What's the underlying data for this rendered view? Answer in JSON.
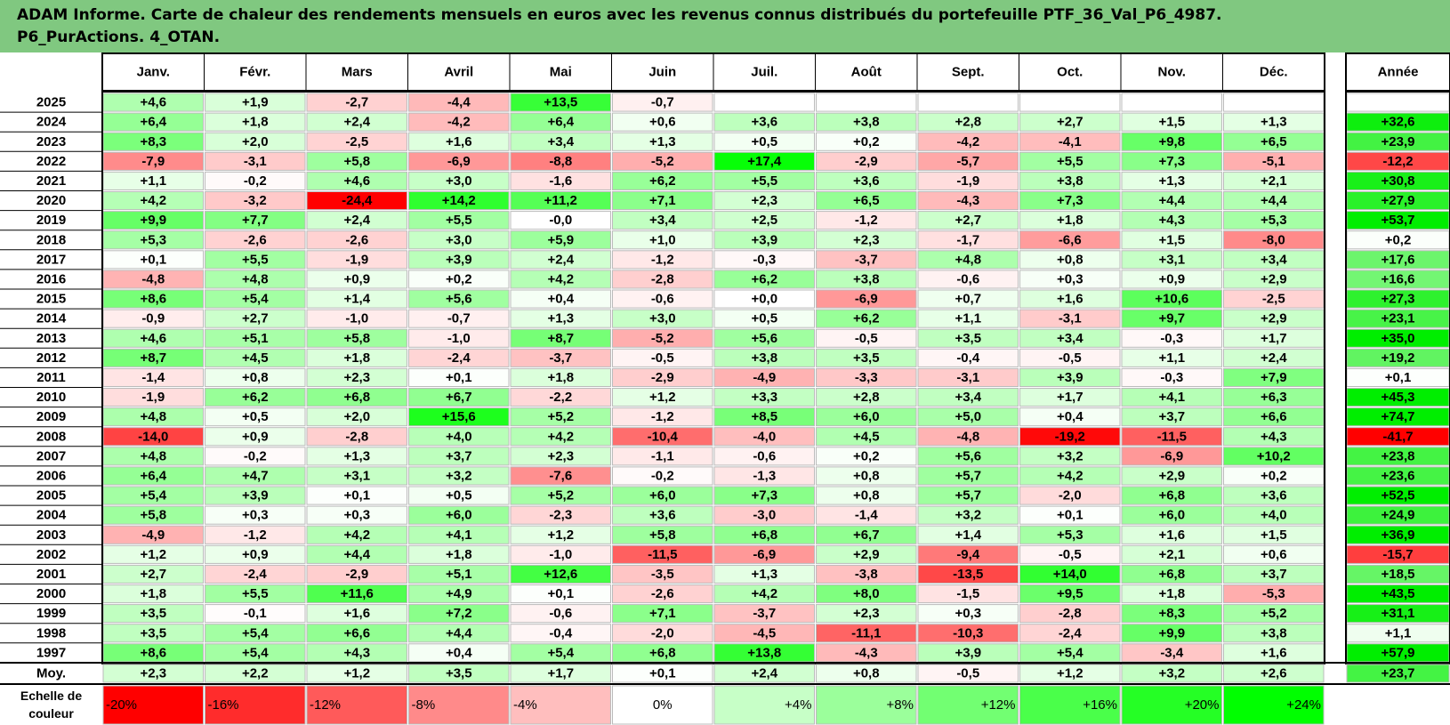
{
  "title_lines": [
    "ADAM Informe. Carte de chaleur des rendements mensuels en euros avec les revenus connus distribués du portefeuille PTF_36_Val_P6_4987.",
    "P6_PurActions. 4_OTAN."
  ],
  "chart_data": {
    "type": "heatmap",
    "columns": [
      "Janv.",
      "Févr.",
      "Mars",
      "Avril",
      "Mai",
      "Juin",
      "Juil.",
      "Août",
      "Sept.",
      "Oct.",
      "Nov.",
      "Déc."
    ],
    "year_header": "Année",
    "rows": [
      {
        "label": "2025",
        "values": [
          "+4,6",
          "+1,9",
          "-2,7",
          "-4,4",
          "+13,5",
          "-0,7",
          "",
          "",
          "",
          "",
          "",
          ""
        ],
        "year": ""
      },
      {
        "label": "2024",
        "values": [
          "+6,4",
          "+1,8",
          "+2,4",
          "-4,2",
          "+6,4",
          "+0,6",
          "+3,6",
          "+3,8",
          "+2,8",
          "+2,7",
          "+1,5",
          "+1,3"
        ],
        "year": "+32,6"
      },
      {
        "label": "2023",
        "values": [
          "+8,3",
          "+2,0",
          "-2,5",
          "+1,6",
          "+3,4",
          "+1,3",
          "+0,5",
          "+0,2",
          "-4,2",
          "-4,1",
          "+9,8",
          "+6,5"
        ],
        "year": "+23,9"
      },
      {
        "label": "2022",
        "values": [
          "-7,9",
          "-3,1",
          "+5,8",
          "-6,9",
          "-8,8",
          "-5,2",
          "+17,4",
          "-2,9",
          "-5,7",
          "+5,5",
          "+7,3",
          "-5,1"
        ],
        "year": "-12,2"
      },
      {
        "label": "2021",
        "values": [
          "+1,1",
          "-0,2",
          "+4,6",
          "+3,0",
          "-1,6",
          "+6,2",
          "+5,5",
          "+3,6",
          "-1,9",
          "+3,8",
          "+1,3",
          "+2,1"
        ],
        "year": "+30,8"
      },
      {
        "label": "2020",
        "values": [
          "+4,2",
          "-3,2",
          "-24,4",
          "+14,2",
          "+11,2",
          "+7,1",
          "+2,3",
          "+6,5",
          "-4,3",
          "+7,3",
          "+4,4",
          "+4,4"
        ],
        "year": "+27,9"
      },
      {
        "label": "2019",
        "values": [
          "+9,9",
          "+7,7",
          "+2,4",
          "+5,5",
          "-0,0",
          "+3,4",
          "+2,5",
          "-1,2",
          "+2,7",
          "+1,8",
          "+4,3",
          "+5,3"
        ],
        "year": "+53,7"
      },
      {
        "label": "2018",
        "values": [
          "+5,3",
          "-2,6",
          "-2,6",
          "+3,0",
          "+5,9",
          "+1,0",
          "+3,9",
          "+2,3",
          "-1,7",
          "-6,6",
          "+1,5",
          "-8,0"
        ],
        "year": "+0,2"
      },
      {
        "label": "2017",
        "values": [
          "+0,1",
          "+5,5",
          "-1,9",
          "+3,9",
          "+2,4",
          "-1,2",
          "-0,3",
          "-3,7",
          "+4,8",
          "+0,8",
          "+3,1",
          "+3,4"
        ],
        "year": "+17,6"
      },
      {
        "label": "2016",
        "values": [
          "-4,8",
          "+4,8",
          "+0,9",
          "+0,2",
          "+4,2",
          "-2,8",
          "+6,2",
          "+3,8",
          "-0,6",
          "+0,3",
          "+0,9",
          "+2,9"
        ],
        "year": "+16,6"
      },
      {
        "label": "2015",
        "values": [
          "+8,6",
          "+5,4",
          "+1,4",
          "+5,6",
          "+0,4",
          "-0,6",
          "+0,0",
          "-6,9",
          "+0,7",
          "+1,6",
          "+10,6",
          "-2,5"
        ],
        "year": "+27,3"
      },
      {
        "label": "2014",
        "values": [
          "-0,9",
          "+2,7",
          "-1,0",
          "-0,7",
          "+1,3",
          "+3,0",
          "+0,5",
          "+6,2",
          "+1,1",
          "-3,1",
          "+9,7",
          "+2,9"
        ],
        "year": "+23,1"
      },
      {
        "label": "2013",
        "values": [
          "+4,6",
          "+5,1",
          "+5,8",
          "-1,0",
          "+8,7",
          "-5,2",
          "+5,6",
          "-0,5",
          "+3,5",
          "+3,4",
          "-0,3",
          "+1,7"
        ],
        "year": "+35,0"
      },
      {
        "label": "2012",
        "values": [
          "+8,7",
          "+4,5",
          "+1,8",
          "-2,4",
          "-3,7",
          "-0,5",
          "+3,8",
          "+3,5",
          "-0,4",
          "-0,5",
          "+1,1",
          "+2,4"
        ],
        "year": "+19,2"
      },
      {
        "label": "2011",
        "values": [
          "-1,4",
          "+0,8",
          "+2,3",
          "+0,1",
          "+1,8",
          "-2,9",
          "-4,9",
          "-3,3",
          "-3,1",
          "+3,9",
          "-0,3",
          "+7,9"
        ],
        "year": "+0,1"
      },
      {
        "label": "2010",
        "values": [
          "-1,9",
          "+6,2",
          "+6,8",
          "+6,7",
          "-2,2",
          "+1,2",
          "+3,3",
          "+2,8",
          "+3,4",
          "+1,7",
          "+4,1",
          "+6,3"
        ],
        "year": "+45,3"
      },
      {
        "label": "2009",
        "values": [
          "+4,8",
          "+0,5",
          "+2,0",
          "+15,6",
          "+5,2",
          "-1,2",
          "+8,5",
          "+6,0",
          "+5,0",
          "+0,4",
          "+3,7",
          "+6,6"
        ],
        "year": "+74,7"
      },
      {
        "label": "2008",
        "values": [
          "-14,0",
          "+0,9",
          "-2,8",
          "+4,0",
          "+4,2",
          "-10,4",
          "-4,0",
          "+4,5",
          "-4,8",
          "-19,2",
          "-11,5",
          "+4,3"
        ],
        "year": "-41,7"
      },
      {
        "label": "2007",
        "values": [
          "+4,8",
          "-0,2",
          "+1,3",
          "+3,7",
          "+2,3",
          "-1,1",
          "-0,6",
          "+0,2",
          "+5,6",
          "+3,2",
          "-6,9",
          "+10,2"
        ],
        "year": "+23,8"
      },
      {
        "label": "2006",
        "values": [
          "+6,4",
          "+4,7",
          "+3,1",
          "+3,2",
          "-7,6",
          "-0,2",
          "-1,3",
          "+0,8",
          "+5,7",
          "+4,2",
          "+2,9",
          "+0,2"
        ],
        "year": "+23,6"
      },
      {
        "label": "2005",
        "values": [
          "+5,4",
          "+3,9",
          "+0,1",
          "+0,5",
          "+5,2",
          "+6,0",
          "+7,3",
          "+0,8",
          "+5,7",
          "-2,0",
          "+6,8",
          "+3,6"
        ],
        "year": "+52,5"
      },
      {
        "label": "2004",
        "values": [
          "+5,8",
          "+0,3",
          "+0,3",
          "+6,0",
          "-2,3",
          "+3,6",
          "-3,0",
          "-1,4",
          "+3,2",
          "+0,1",
          "+6,0",
          "+4,0"
        ],
        "year": "+24,9"
      },
      {
        "label": "2003",
        "values": [
          "-4,9",
          "-1,2",
          "+4,2",
          "+4,1",
          "+1,2",
          "+5,8",
          "+6,8",
          "+6,7",
          "+1,4",
          "+5,3",
          "+1,6",
          "+1,5"
        ],
        "year": "+36,9"
      },
      {
        "label": "2002",
        "values": [
          "+1,2",
          "+0,9",
          "+4,4",
          "+1,8",
          "-1,0",
          "-11,5",
          "-6,9",
          "+2,9",
          "-9,4",
          "-0,5",
          "+2,1",
          "+0,6"
        ],
        "year": "-15,7"
      },
      {
        "label": "2001",
        "values": [
          "+2,7",
          "-2,4",
          "-2,9",
          "+5,1",
          "+12,6",
          "-3,5",
          "+1,3",
          "-3,8",
          "-13,5",
          "+14,0",
          "+6,8",
          "+3,7"
        ],
        "year": "+18,5"
      },
      {
        "label": "2000",
        "values": [
          "+1,8",
          "+5,5",
          "+11,6",
          "+4,9",
          "+0,1",
          "-2,6",
          "+4,2",
          "+8,0",
          "-1,5",
          "+9,5",
          "+1,8",
          "-5,3"
        ],
        "year": "+43,5"
      },
      {
        "label": "1999",
        "values": [
          "+3,5",
          "-0,1",
          "+1,6",
          "+7,2",
          "-0,6",
          "+7,1",
          "-3,7",
          "+2,3",
          "+0,3",
          "-2,8",
          "+8,3",
          "+5,2"
        ],
        "year": "+31,1"
      },
      {
        "label": "1998",
        "values": [
          "+3,5",
          "+5,4",
          "+6,6",
          "+4,4",
          "-0,4",
          "-2,0",
          "-4,5",
          "-11,1",
          "-10,3",
          "-2,4",
          "+9,9",
          "+3,8"
        ],
        "year": "+1,1"
      },
      {
        "label": "1997",
        "values": [
          "+8,6",
          "+5,4",
          "+4,3",
          "+0,4",
          "+5,4",
          "+6,8",
          "+13,8",
          "-4,3",
          "+3,9",
          "+5,4",
          "-3,4",
          "+1,6"
        ],
        "year": "+57,9"
      }
    ],
    "average_row": {
      "label": "Moy.",
      "values": [
        "+2,3",
        "+2,2",
        "+1,2",
        "+3,5",
        "+1,7",
        "+0,1",
        "+2,4",
        "+0,8",
        "-0,5",
        "+1,2",
        "+3,2",
        "+2,6"
      ],
      "year": "+23,7"
    },
    "scale_label_lines": [
      "Echelle de",
      "couleur"
    ],
    "scale": [
      "-20%",
      "-16%",
      "-12%",
      "-8%",
      "-4%",
      "0%",
      "+4%",
      "+8%",
      "+12%",
      "+16%",
      "+20%",
      "+24%"
    ],
    "colors": {
      "title_bg": "#80c880",
      "negative_max": "#ff0000",
      "neutral": "#ffffff",
      "positive_max": "#00ff00",
      "year_column": "#00ee00",
      "grid": "#bbbbbb"
    }
  }
}
